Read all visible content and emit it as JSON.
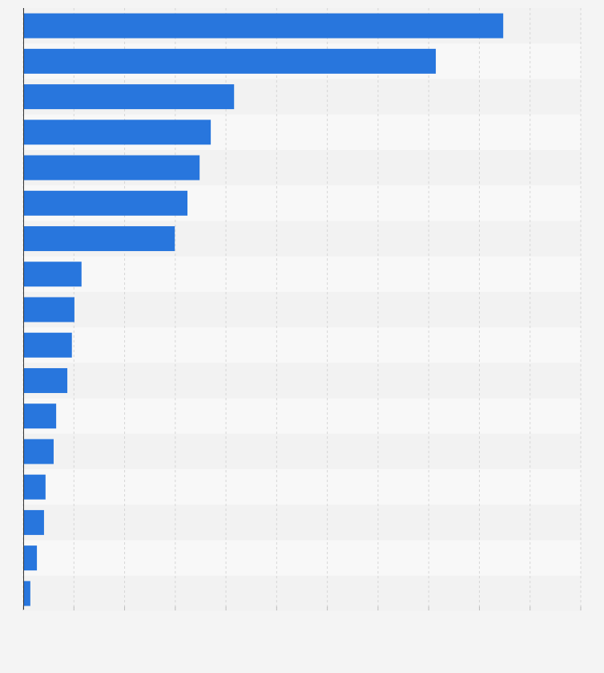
{
  "chart_data": {
    "type": "hbar",
    "color": "#2876dd",
    "grid": true,
    "categories": [
      null,
      null,
      null,
      null,
      null,
      null,
      null,
      null,
      null,
      null,
      null,
      null,
      null,
      null,
      null,
      null,
      null
    ],
    "values": [
      9.47,
      8.14,
      4.16,
      3.7,
      3.48,
      3.24,
      2.99,
      1.15,
      1.01,
      0.96,
      0.87,
      0.65,
      0.6,
      0.44,
      0.41,
      0.27,
      0.14
    ],
    "xlim": [
      0,
      11
    ],
    "xticks": [
      0,
      1,
      2,
      3,
      4,
      5,
      6,
      7,
      8,
      9,
      10,
      11
    ]
  }
}
